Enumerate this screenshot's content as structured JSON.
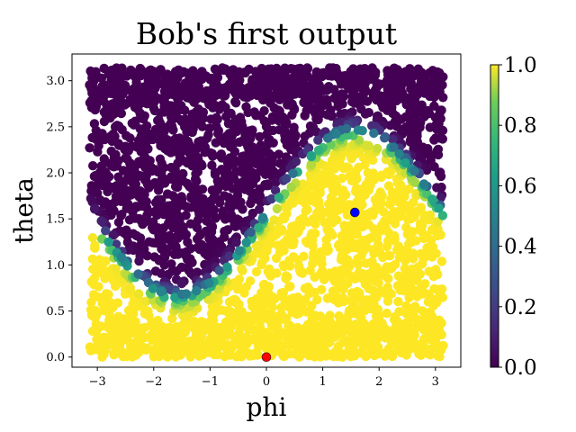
{
  "chart_data": {
    "type": "scatter",
    "title": "Bob's first output",
    "xlabel": "phi",
    "ylabel": "theta",
    "xlim": [
      -3.45,
      3.45
    ],
    "ylim": [
      -0.11,
      3.29
    ],
    "x_ticks": [
      -3,
      -2,
      -1,
      0,
      1,
      2,
      3
    ],
    "y_ticks": [
      0.0,
      0.5,
      1.0,
      1.5,
      2.0,
      2.5,
      3.0
    ],
    "x_tick_labels": [
      "−3",
      "−2",
      "−1",
      "0",
      "1",
      "2",
      "3"
    ],
    "y_tick_labels": [
      "0.0",
      "0.5",
      "1.0",
      "1.5",
      "2.0",
      "2.5",
      "3.0"
    ],
    "grid": false,
    "colormap": "viridis",
    "colorbar": {
      "range": [
        0.0,
        1.0
      ],
      "ticks": [
        0.0,
        0.2,
        0.4,
        0.6,
        0.8,
        1.0
      ],
      "tick_labels": [
        "0.0",
        "0.2",
        "0.4",
        "0.6",
        "0.8",
        "1.0"
      ]
    },
    "points_description": "dense cloud of points over phi in [-3.14, 3.14], theta in [0, 3.14]; value ~1 (yellow) below boundary theta = 1.57 + 0.9*sin(phi), value ~0 (purple) above",
    "decision_boundary": {
      "formula": "theta = 1.57 + 0.9*sin(phi)"
    },
    "markers": [
      {
        "x": 0.0,
        "y": 0.0,
        "color": "#ff0000"
      },
      {
        "x": 1.57,
        "y": 1.57,
        "color": "#0000ff"
      }
    ],
    "colors": {
      "low": "#440154",
      "high": "#fde725",
      "boundary_mid": "#21918c"
    }
  }
}
